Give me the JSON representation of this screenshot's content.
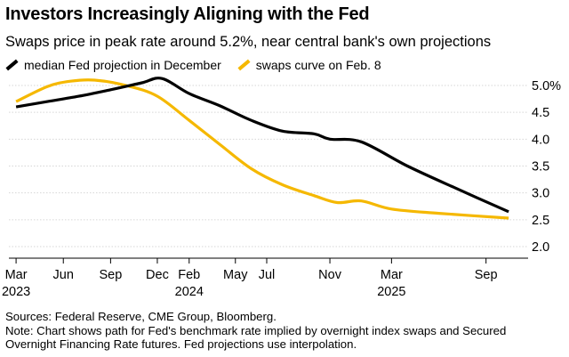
{
  "title": "Investors Increasingly Aligning with the Fed",
  "subtitle": "Swaps price in peak rate around 5.2%, near central bank's own projections",
  "legend": [
    {
      "label": "median Fed projection in December",
      "color": "#000000"
    },
    {
      "label": "swaps curve on Feb. 8",
      "color": "#f5b800"
    }
  ],
  "notes": {
    "sources": "Sources: Federal Reserve, CME Group, Bloomberg.",
    "note_line1": "Note: Chart shows path for Fed's benchmark rate implied by overnight index swaps and Secured",
    "note_line2": "Overnight Financing Rate futures. Fed projections use interpolation."
  },
  "chart_data": {
    "type": "line",
    "title": "Investors Increasingly Aligning with the Fed",
    "subtitle": "Swaps price in peak rate around 5.2%, near central bank's own projections",
    "xlabel": "",
    "ylabel": "",
    "ylim": [
      2.0,
      5.0
    ],
    "xlim": [
      "2023-02-15",
      "2025-11-15"
    ],
    "y_ticks": [
      {
        "value": 5.0,
        "label": "5.0%"
      },
      {
        "value": 4.5,
        "label": "4.5"
      },
      {
        "value": 4.0,
        "label": "4.0"
      },
      {
        "value": 3.5,
        "label": "3.5"
      },
      {
        "value": 3.0,
        "label": "3.0"
      },
      {
        "value": 2.5,
        "label": "2.5"
      },
      {
        "value": 2.0,
        "label": "2.0"
      }
    ],
    "x_ticks": [
      {
        "date": "2023-03-01",
        "label": "Mar",
        "year": "2023"
      },
      {
        "date": "2023-06-01",
        "label": "Jun",
        "year": ""
      },
      {
        "date": "2023-09-01",
        "label": "Sep",
        "year": ""
      },
      {
        "date": "2023-12-01",
        "label": "Dec",
        "year": ""
      },
      {
        "date": "2024-02-01",
        "label": "Feb",
        "year": "2024"
      },
      {
        "date": "2024-05-01",
        "label": "May",
        "year": ""
      },
      {
        "date": "2024-07-01",
        "label": "Jul",
        "year": ""
      },
      {
        "date": "2024-11-01",
        "label": "Nov",
        "year": ""
      },
      {
        "date": "2025-03-01",
        "label": "Mar",
        "year": "2025"
      },
      {
        "date": "2025-09-01",
        "label": "Sep",
        "year": ""
      }
    ],
    "grid": "horizontal",
    "legend_position": "top-left",
    "series": [
      {
        "name": "median Fed projection in December",
        "color": "#000000",
        "points": [
          {
            "x": "2023-03-01",
            "y": 4.6
          },
          {
            "x": "2023-05-01",
            "y": 4.7
          },
          {
            "x": "2023-07-01",
            "y": 4.8
          },
          {
            "x": "2023-09-01",
            "y": 4.92
          },
          {
            "x": "2023-11-01",
            "y": 5.05
          },
          {
            "x": "2023-12-10",
            "y": 5.13
          },
          {
            "x": "2024-02-01",
            "y": 4.85
          },
          {
            "x": "2024-04-01",
            "y": 4.62
          },
          {
            "x": "2024-06-01",
            "y": 4.35
          },
          {
            "x": "2024-08-01",
            "y": 4.15
          },
          {
            "x": "2024-10-01",
            "y": 4.1
          },
          {
            "x": "2024-11-01",
            "y": 4.0
          },
          {
            "x": "2025-01-01",
            "y": 3.95
          },
          {
            "x": "2025-04-01",
            "y": 3.5
          },
          {
            "x": "2025-07-01",
            "y": 3.1
          },
          {
            "x": "2025-10-15",
            "y": 2.65
          }
        ]
      },
      {
        "name": "swaps curve on Feb. 8",
        "color": "#f5b800",
        "points": [
          {
            "x": "2023-03-01",
            "y": 4.7
          },
          {
            "x": "2023-05-01",
            "y": 4.98
          },
          {
            "x": "2023-06-15",
            "y": 5.08
          },
          {
            "x": "2023-08-01",
            "y": 5.1
          },
          {
            "x": "2023-10-01",
            "y": 5.0
          },
          {
            "x": "2023-12-01",
            "y": 4.8
          },
          {
            "x": "2024-02-01",
            "y": 4.35
          },
          {
            "x": "2024-04-01",
            "y": 3.9
          },
          {
            "x": "2024-06-01",
            "y": 3.45
          },
          {
            "x": "2024-08-01",
            "y": 3.15
          },
          {
            "x": "2024-10-01",
            "y": 2.95
          },
          {
            "x": "2024-11-15",
            "y": 2.82
          },
          {
            "x": "2025-01-01",
            "y": 2.85
          },
          {
            "x": "2025-03-01",
            "y": 2.7
          },
          {
            "x": "2025-06-01",
            "y": 2.62
          },
          {
            "x": "2025-10-15",
            "y": 2.53
          }
        ]
      }
    ]
  }
}
